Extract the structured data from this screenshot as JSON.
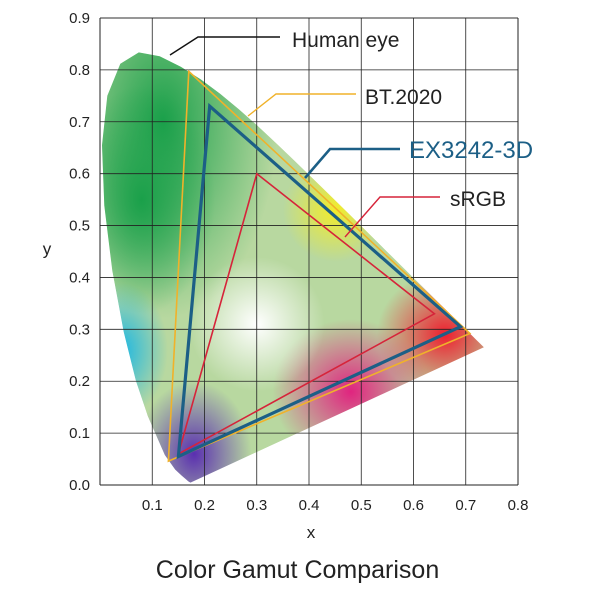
{
  "caption": "Color Gamut Comparison",
  "chart_data": {
    "type": "scatter",
    "title": "Color Gamut Comparison",
    "xlabel": "x",
    "ylabel": "y",
    "xlim": [
      0,
      0.8
    ],
    "ylim": [
      0,
      0.9
    ],
    "x_ticks": [
      "0.1",
      "0.2",
      "0.3",
      "0.4",
      "0.5",
      "0.6",
      "0.7",
      "0.8"
    ],
    "y_ticks": [
      "0.0",
      "0.1",
      "0.2",
      "0.3",
      "0.4",
      "0.5",
      "0.6",
      "0.7",
      "0.8",
      "0.9"
    ],
    "grid": true,
    "series": [
      {
        "name": "Human eye",
        "shape": "spectral locus (horseshoe)",
        "color": "#111111",
        "points": [
          [
            0.1741,
            0.005
          ],
          [
            0.1738,
            0.0049
          ],
          [
            0.1726,
            0.0048
          ],
          [
            0.1689,
            0.0069
          ],
          [
            0.1644,
            0.0109
          ],
          [
            0.1566,
            0.0177
          ],
          [
            0.144,
            0.0297
          ],
          [
            0.1241,
            0.0578
          ],
          [
            0.0913,
            0.1327
          ],
          [
            0.0687,
            0.2007
          ],
          [
            0.0454,
            0.295
          ],
          [
            0.0235,
            0.4127
          ],
          [
            0.0082,
            0.5384
          ],
          [
            0.0039,
            0.6548
          ],
          [
            0.0139,
            0.7502
          ],
          [
            0.0389,
            0.812
          ],
          [
            0.0743,
            0.8338
          ],
          [
            0.1142,
            0.8262
          ],
          [
            0.1547,
            0.8059
          ],
          [
            0.1929,
            0.7816
          ],
          [
            0.2296,
            0.7543
          ],
          [
            0.2658,
            0.7243
          ],
          [
            0.3016,
            0.6923
          ],
          [
            0.3373,
            0.6589
          ],
          [
            0.3731,
            0.6245
          ],
          [
            0.4087,
            0.5896
          ],
          [
            0.4441,
            0.5547
          ],
          [
            0.4788,
            0.5202
          ],
          [
            0.5125,
            0.4866
          ],
          [
            0.5448,
            0.4544
          ],
          [
            0.5752,
            0.4242
          ],
          [
            0.6029,
            0.3965
          ],
          [
            0.627,
            0.3725
          ],
          [
            0.6482,
            0.3514
          ],
          [
            0.6658,
            0.334
          ],
          [
            0.6801,
            0.3197
          ],
          [
            0.6915,
            0.3083
          ],
          [
            0.7006,
            0.2993
          ],
          [
            0.7079,
            0.292
          ],
          [
            0.714,
            0.2859
          ],
          [
            0.719,
            0.2809
          ],
          [
            0.7347,
            0.2653
          ]
        ]
      },
      {
        "name": "BT.2020",
        "color": "#f0b22a",
        "points": [
          [
            0.708,
            0.292
          ],
          [
            0.17,
            0.797
          ],
          [
            0.131,
            0.046
          ]
        ]
      },
      {
        "name": "EX3242-3D",
        "color": "#1c5f86",
        "points": [
          [
            0.69,
            0.305
          ],
          [
            0.21,
            0.73
          ],
          [
            0.15,
            0.055
          ]
        ]
      },
      {
        "name": "sRGB",
        "color": "#d6243a",
        "points": [
          [
            0.64,
            0.33
          ],
          [
            0.3,
            0.6
          ],
          [
            0.15,
            0.06
          ]
        ]
      }
    ]
  }
}
